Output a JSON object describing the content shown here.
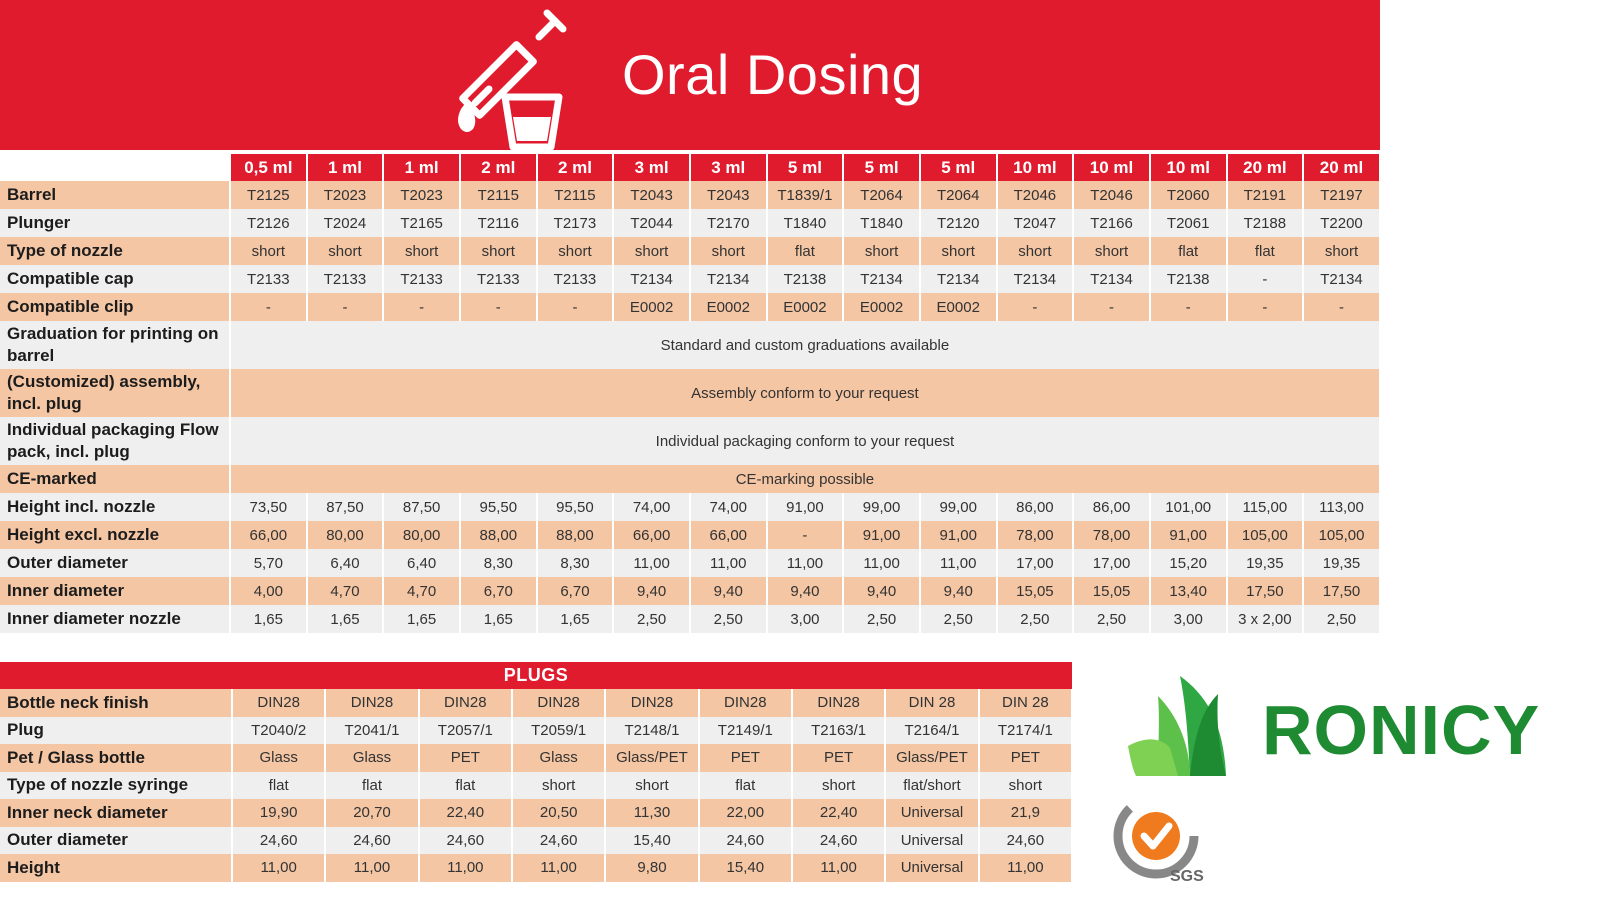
{
  "header": {
    "title": "Oral Dosing",
    "icon": "syringe-cup-icon"
  },
  "spec": {
    "columns": [
      "0,5 ml",
      "1 ml",
      "1 ml",
      "2 ml",
      "2 ml",
      "3 ml",
      "3 ml",
      "5 ml",
      "5 ml",
      "5 ml",
      "10 ml",
      "10 ml",
      "10 ml",
      "20 ml",
      "20 ml"
    ],
    "rows": [
      {
        "label": "Barrel",
        "values": [
          "T2125",
          "T2023",
          "T2023",
          "T2115",
          "T2115",
          "T2043",
          "T2043",
          "T1839/1",
          "T2064",
          "T2064",
          "T2046",
          "T2046",
          "T2060",
          "T2191",
          "T2197"
        ]
      },
      {
        "label": "Plunger",
        "values": [
          "T2126",
          "T2024",
          "T2165",
          "T2116",
          "T2173",
          "T2044",
          "T2170",
          "T1840",
          "T1840",
          "T2120",
          "T2047",
          "T2166",
          "T2061",
          "T2188",
          "T2200"
        ]
      },
      {
        "label": "Type of nozzle",
        "values": [
          "short",
          "short",
          "short",
          "short",
          "short",
          "short",
          "short",
          "flat",
          "short",
          "short",
          "short",
          "short",
          "flat",
          "flat",
          "short"
        ]
      },
      {
        "label": "Compatible cap",
        "values": [
          "T2133",
          "T2133",
          "T2133",
          "T2133",
          "T2133",
          "T2134",
          "T2134",
          "T2138",
          "T2134",
          "T2134",
          "T2134",
          "T2134",
          "T2138",
          "-",
          "T2134"
        ]
      },
      {
        "label": "Compatible clip",
        "values": [
          "-",
          "-",
          "-",
          "-",
          "-",
          "E0002",
          "E0002",
          "E0002",
          "E0002",
          "E0002",
          "-",
          "-",
          "-",
          "-",
          "-"
        ]
      },
      {
        "label": "Graduation for printing on barrel",
        "span": "Standard and custom graduations available"
      },
      {
        "label": "(Customized) assembly, incl. plug",
        "span": "Assembly conform to your request"
      },
      {
        "label": "Individual packaging Flow pack, incl. plug",
        "span": "Individual packaging conform to your request"
      },
      {
        "label": "CE-marked",
        "span": "CE-marking possible"
      },
      {
        "label": "Height incl. nozzle",
        "values": [
          "73,50",
          "87,50",
          "87,50",
          "95,50",
          "95,50",
          "74,00",
          "74,00",
          "91,00",
          "99,00",
          "99,00",
          "86,00",
          "86,00",
          "101,00",
          "115,00",
          "113,00"
        ]
      },
      {
        "label": "Height excl. nozzle",
        "values": [
          "66,00",
          "80,00",
          "80,00",
          "88,00",
          "88,00",
          "66,00",
          "66,00",
          "-",
          "91,00",
          "91,00",
          "78,00",
          "78,00",
          "91,00",
          "105,00",
          "105,00"
        ]
      },
      {
        "label": "Outer diameter",
        "values": [
          "5,70",
          "6,40",
          "6,40",
          "8,30",
          "8,30",
          "11,00",
          "11,00",
          "11,00",
          "11,00",
          "11,00",
          "17,00",
          "17,00",
          "15,20",
          "19,35",
          "19,35"
        ]
      },
      {
        "label": "Inner diameter",
        "values": [
          "4,00",
          "4,70",
          "4,70",
          "6,70",
          "6,70",
          "9,40",
          "9,40",
          "9,40",
          "9,40",
          "9,40",
          "15,05",
          "15,05",
          "13,40",
          "17,50",
          "17,50"
        ]
      },
      {
        "label": "Inner diameter nozzle",
        "values": [
          "1,65",
          "1,65",
          "1,65",
          "1,65",
          "1,65",
          "2,50",
          "2,50",
          "3,00",
          "2,50",
          "2,50",
          "2,50",
          "2,50",
          "3,00",
          "3 x 2,00",
          "2,50"
        ]
      }
    ]
  },
  "plugs": {
    "title": "PLUGS",
    "rows": [
      {
        "label": "Bottle neck finish",
        "values": [
          "DIN28",
          "DIN28",
          "DIN28",
          "DIN28",
          "DIN28",
          "DIN28",
          "DIN28",
          "DIN 28",
          "DIN 28"
        ]
      },
      {
        "label": "Plug",
        "values": [
          "T2040/2",
          "T2041/1",
          "T2057/1",
          "T2059/1",
          "T2148/1",
          "T2149/1",
          "T2163/1",
          "T2164/1",
          "T2174/1"
        ]
      },
      {
        "label": "Pet / Glass bottle",
        "values": [
          "Glass",
          "Glass",
          "PET",
          "Glass",
          "Glass/PET",
          "PET",
          "PET",
          "Glass/PET",
          "PET"
        ]
      },
      {
        "label": "Type of nozzle syringe",
        "values": [
          "flat",
          "flat",
          "flat",
          "short",
          "short",
          "flat",
          "short",
          "flat/short",
          "short"
        ]
      },
      {
        "label": "Inner neck diameter",
        "values": [
          "19,90",
          "20,70",
          "22,40",
          "20,50",
          "11,30",
          "22,00",
          "22,40",
          "Universal",
          "21,9"
        ]
      },
      {
        "label": "Outer diameter",
        "values": [
          "24,60",
          "24,60",
          "24,60",
          "24,60",
          "15,40",
          "24,60",
          "24,60",
          "Universal",
          "24,60"
        ]
      },
      {
        "label": "Height",
        "values": [
          "11,00",
          "11,00",
          "11,00",
          "11,00",
          "9,80",
          "15,40",
          "11,00",
          "Universal",
          "11,00"
        ]
      }
    ]
  },
  "brand": {
    "name": "RONICY",
    "logo_icon": "leaf-logo-icon",
    "cert_icon": "sgs-iso-seal-icon",
    "cert_text": "SGS",
    "green": "#1e8a32",
    "red": "#e01b2e"
  }
}
